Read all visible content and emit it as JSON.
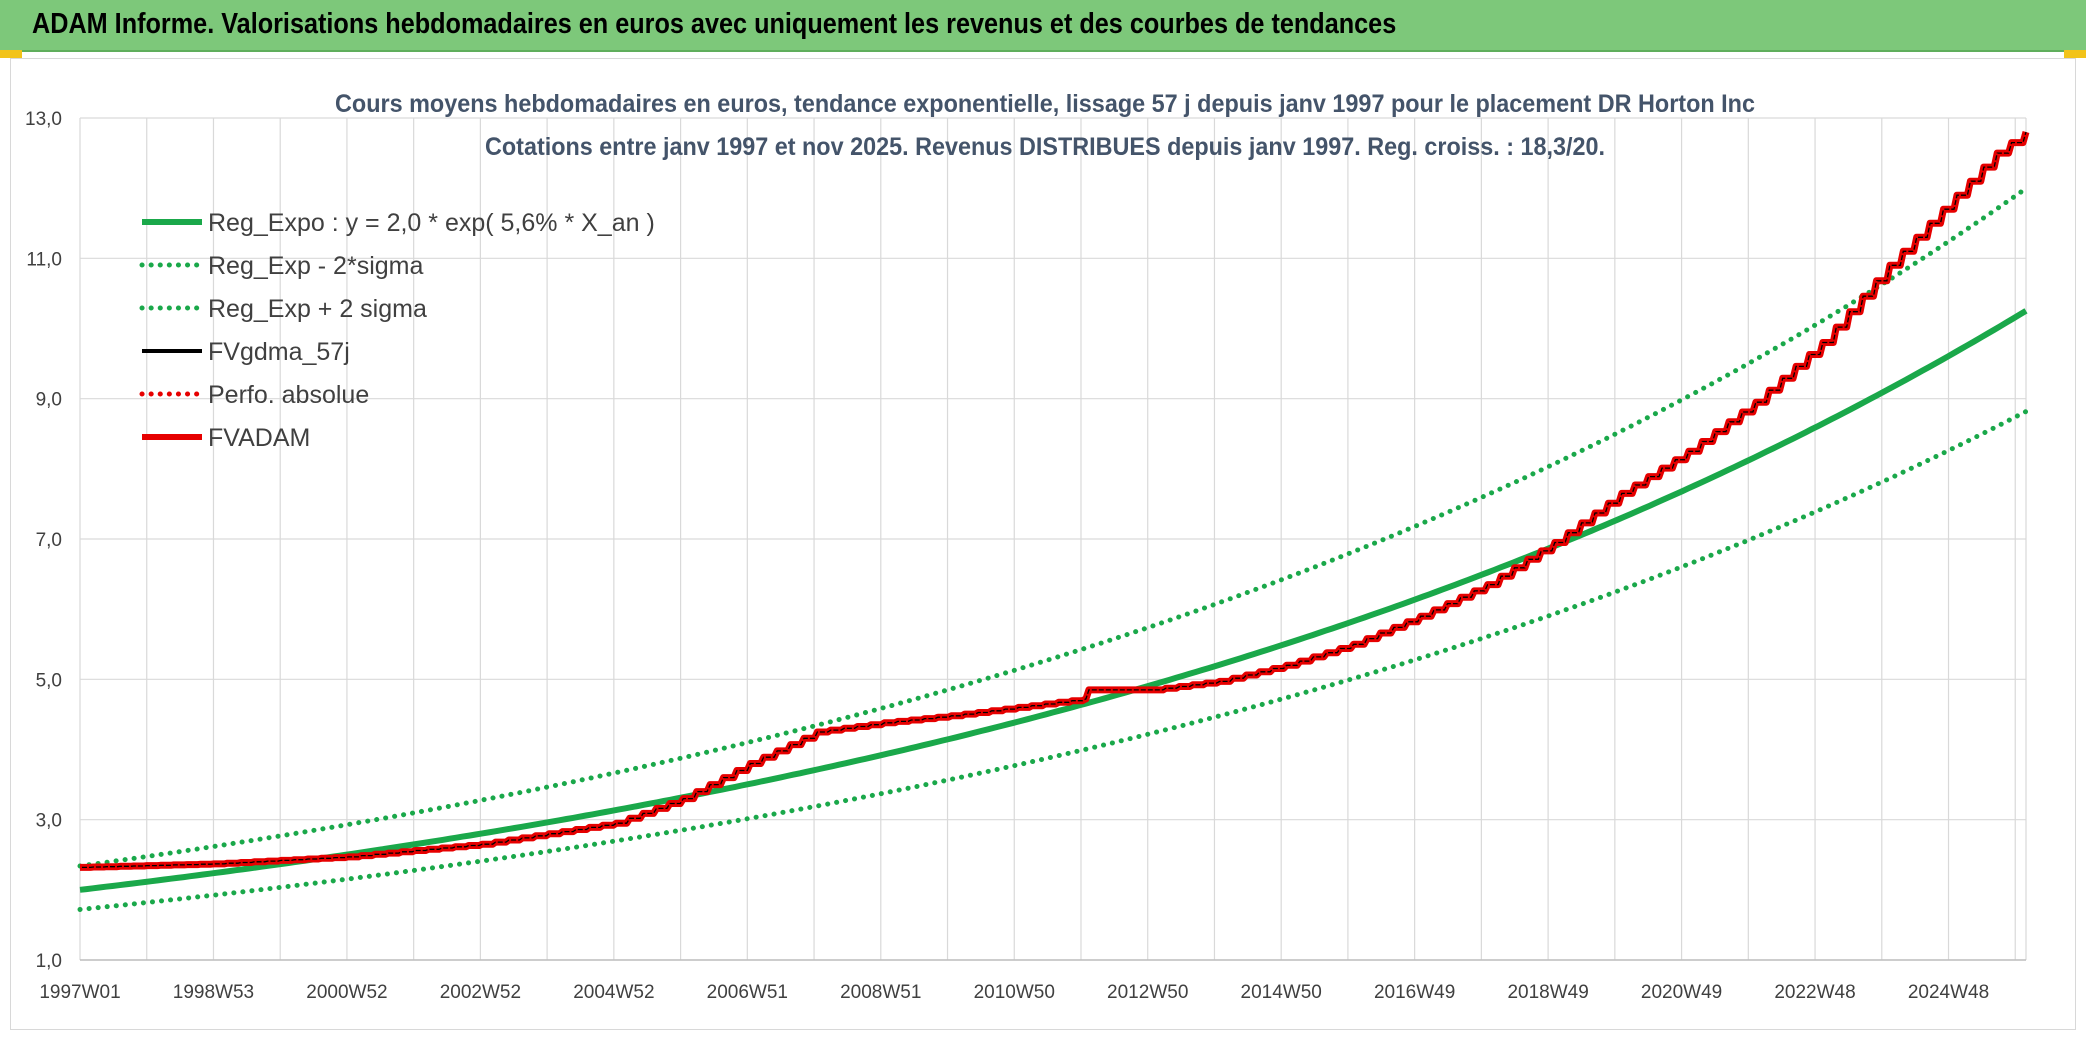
{
  "header": {
    "title": "ADAM Informe. Valorisations hebdomadaires en euros avec uniquement les revenus et des courbes de tendances"
  },
  "colors": {
    "banner": "#7dc87a",
    "green": "#1aa84a",
    "red": "#e60000",
    "black": "#000000",
    "grid": "#d9d9d9",
    "title": "#44546a"
  },
  "chart_data": {
    "type": "line",
    "title_line1": "Cours moyens hebdomadaires en euros, tendance exponentielle, lissage 57 j depuis janv 1997 pour le placement DR Horton Inc",
    "title_line2": "Cotations entre janv 1997 et nov 2025. Revenus DISTRIBUES depuis janv 1997. Reg. croiss. : 18,3/20.",
    "x_tick_labels": [
      "1997W01",
      "1998W53",
      "2000W52",
      "2002W52",
      "2004W52",
      "2006W51",
      "2008W51",
      "2010W50",
      "2012W50",
      "2014W50",
      "2016W49",
      "2018W49",
      "2020W49",
      "2022W48",
      "2024W48"
    ],
    "x_range_years": [
      1997.0,
      2026.03
    ],
    "ylim": [
      1.0,
      13.0
    ],
    "y_ticks": [
      "1,0",
      "3,0",
      "5,0",
      "7,0",
      "9,0",
      "11,0",
      "13,0"
    ],
    "grid": true,
    "legend_position": "top-left",
    "series": [
      {
        "name": "Reg_Expo : y = 2,0 * exp( 5,6% *  X_an )",
        "style": "solid-thick",
        "color": "#1aa84a",
        "formula": {
          "a": 2.0,
          "r": 0.0563,
          "factor": 1.0
        }
      },
      {
        "name": "Reg_Exp - 2*sigma",
        "style": "dotted",
        "color": "#1aa84a",
        "formula": {
          "a": 2.0,
          "r": 0.0563,
          "factor": 0.86
        }
      },
      {
        "name": "Reg_Exp + 2 sigma",
        "style": "dotted",
        "color": "#1aa84a",
        "formula": {
          "a": 2.0,
          "r": 0.0563,
          "factor": 1.17
        }
      },
      {
        "name": "FVgdma_57j",
        "style": "solid",
        "color": "#000000"
      },
      {
        "name": "Perfo. absolue",
        "style": "dotted",
        "color": "#e60000"
      },
      {
        "name": "FVADAM",
        "style": "solid-thick",
        "color": "#e60000",
        "x": [
          1997.0,
          1999.0,
          2001.0,
          2003.0,
          2005.0,
          2006.0,
          2007.0,
          2008.0,
          2009.0,
          2010.0,
          2011.0,
          2012.0,
          2012.05,
          2013.0,
          2014.0,
          2015.0,
          2016.0,
          2017.0,
          2018.0,
          2019.0,
          2020.0,
          2021.0,
          2022.0,
          2023.0,
          2024.0,
          2025.0,
          2025.6,
          2026.03
        ],
        "y": [
          2.32,
          2.37,
          2.47,
          2.65,
          2.95,
          3.3,
          3.8,
          4.25,
          4.38,
          4.48,
          4.6,
          4.72,
          4.85,
          4.85,
          4.97,
          5.2,
          5.5,
          5.9,
          6.35,
          6.95,
          7.65,
          8.25,
          8.95,
          9.8,
          10.9,
          11.9,
          12.5,
          12.8
        ]
      }
    ]
  }
}
